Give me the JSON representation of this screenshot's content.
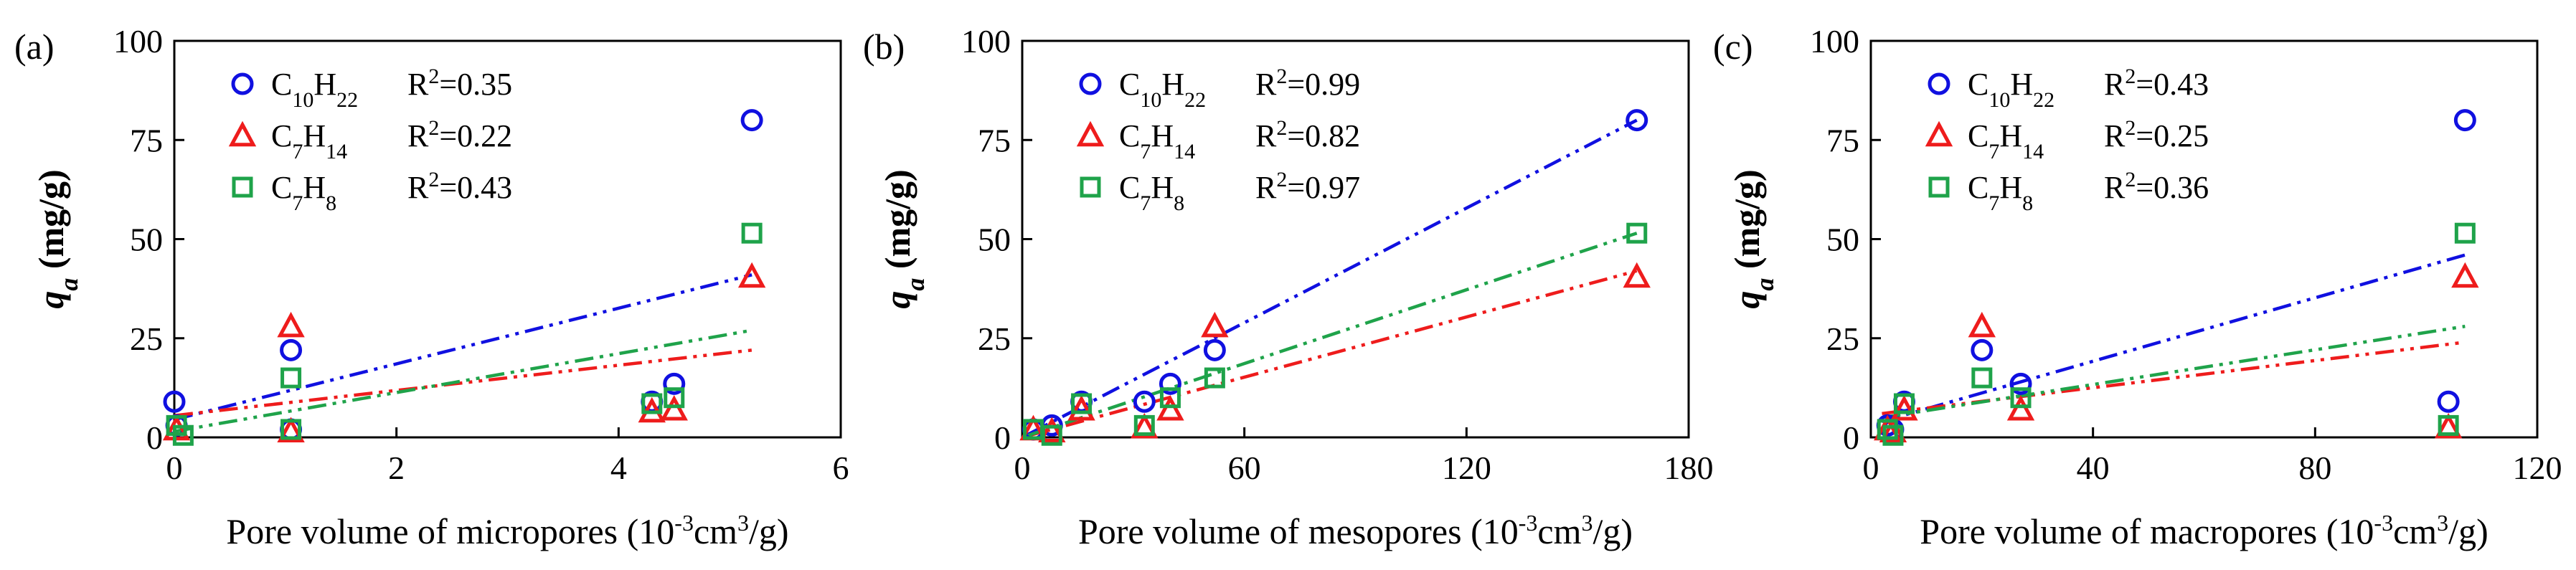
{
  "chart_data": [
    {
      "type": "scatter",
      "panel_label": "(a)",
      "title": "",
      "xlabel": "Pore volume of micropores (10",
      "xlabel_exp1": "-3",
      "xlabel_mid": "cm",
      "xlabel_exp2": "3",
      "xlabel_end": "/g)",
      "ylabel": "q",
      "ylabel_sub": "a",
      "ylabel_unit": " (mg/g)",
      "xlim": [
        0,
        6
      ],
      "ylim": [
        0,
        100
      ],
      "xticks": [
        0,
        2,
        4,
        6
      ],
      "yticks": [
        0,
        25,
        50,
        75,
        100
      ],
      "xtick_labels": [
        "0",
        "2",
        "4",
        "6"
      ],
      "ytick_labels": [
        "0",
        "25",
        "50",
        "75",
        "100"
      ],
      "legend_position": "top-left",
      "series": [
        {
          "name": "C10H22",
          "formula": [
            [
              "C",
              "10"
            ],
            [
              "H",
              "22"
            ]
          ],
          "r2_label": "R",
          "r2_exp": "2",
          "r2_value": "=0.35",
          "marker": "circle",
          "color": "#1010e0",
          "points": [
            [
              0,
              9
            ],
            [
              0.02,
              3
            ],
            [
              1.05,
              22
            ],
            [
              1.05,
              2
            ],
            [
              4.3,
              9
            ],
            [
              4.5,
              13.5
            ],
            [
              5.2,
              80
            ]
          ],
          "fit": [
            [
              0,
              4.5
            ],
            [
              5.2,
              41
            ]
          ]
        },
        {
          "name": "C7H14",
          "formula": [
            [
              "C",
              "7"
            ],
            [
              "H",
              "14"
            ]
          ],
          "r2_label": "R",
          "r2_exp": "2",
          "r2_value": "=0.22",
          "marker": "triangle",
          "color": "#ee1c1c",
          "points": [
            [
              0.02,
              2
            ],
            [
              1.05,
              28
            ],
            [
              1.05,
              1.5
            ],
            [
              4.3,
              6.5
            ],
            [
              4.5,
              7
            ],
            [
              5.2,
              40.5
            ]
          ],
          "fit": [
            [
              0,
              5.5
            ],
            [
              5.2,
              22
            ]
          ]
        },
        {
          "name": "C7H8",
          "formula": [
            [
              "C",
              "7"
            ],
            [
              "H",
              "8"
            ]
          ],
          "r2_label": "R",
          "r2_exp": "2",
          "r2_value": "=0.43",
          "marker": "square",
          "color": "#1fa34a",
          "points": [
            [
              0.02,
              3
            ],
            [
              0.08,
              0.5
            ],
            [
              1.05,
              15
            ],
            [
              1.05,
              2
            ],
            [
              4.3,
              8.5
            ],
            [
              4.5,
              10
            ],
            [
              5.2,
              51.5
            ]
          ],
          "fit": [
            [
              0,
              1.5
            ],
            [
              5.2,
              27
            ]
          ]
        }
      ]
    },
    {
      "type": "scatter",
      "panel_label": "(b)",
      "title": "",
      "xlabel": "Pore volume of mesopores (10",
      "xlabel_exp1": "-3",
      "xlabel_mid": "cm",
      "xlabel_exp2": "3",
      "xlabel_end": "/g)",
      "ylabel": "q",
      "ylabel_sub": "a",
      "ylabel_unit": " (mg/g)",
      "xlim": [
        0,
        180
      ],
      "ylim": [
        0,
        100
      ],
      "xticks": [
        0,
        60,
        120,
        180
      ],
      "yticks": [
        0,
        25,
        50,
        75,
        100
      ],
      "xtick_labels": [
        "0",
        "60",
        "120",
        "180"
      ],
      "ytick_labels": [
        "0",
        "25",
        "50",
        "75",
        "100"
      ],
      "legend_position": "top-left",
      "series": [
        {
          "name": "C10H22",
          "formula": [
            [
              "C",
              "10"
            ],
            [
              "H",
              "22"
            ]
          ],
          "r2_label": "R",
          "r2_exp": "2",
          "r2_value": "=0.99",
          "marker": "circle",
          "color": "#1010e0",
          "points": [
            [
              3,
              2
            ],
            [
              8,
              3
            ],
            [
              16,
              9
            ],
            [
              33,
              9
            ],
            [
              40,
              13.5
            ],
            [
              52,
              22
            ],
            [
              166,
              80
            ]
          ],
          "fit": [
            [
              0,
              0
            ],
            [
              166,
              80
            ]
          ]
        },
        {
          "name": "C7H14",
          "formula": [
            [
              "C",
              "7"
            ],
            [
              "H",
              "14"
            ]
          ],
          "r2_label": "R",
          "r2_exp": "2",
          "r2_value": "=0.82",
          "marker": "triangle",
          "color": "#ee1c1c",
          "points": [
            [
              3,
              2
            ],
            [
              8,
              1.5
            ],
            [
              16,
              7
            ],
            [
              33,
              2.5
            ],
            [
              40,
              7
            ],
            [
              52,
              28
            ],
            [
              166,
              40.5
            ]
          ],
          "fit": [
            [
              0,
              0
            ],
            [
              166,
              42
            ]
          ]
        },
        {
          "name": "C7H8",
          "formula": [
            [
              "C",
              "7"
            ],
            [
              "H",
              "8"
            ]
          ],
          "r2_label": "R",
          "r2_exp": "2",
          "r2_value": "=0.97",
          "marker": "square",
          "color": "#1fa34a",
          "points": [
            [
              3,
              2
            ],
            [
              8,
              0.5
            ],
            [
              16,
              8.5
            ],
            [
              33,
              3
            ],
            [
              40,
              10
            ],
            [
              52,
              15
            ],
            [
              166,
              51.5
            ]
          ],
          "fit": [
            [
              0,
              0
            ],
            [
              166,
              51.5
            ]
          ]
        }
      ]
    },
    {
      "type": "scatter",
      "panel_label": "(c)",
      "title": "",
      "xlabel": "Pore volume of macropores (10",
      "xlabel_exp1": "-3",
      "xlabel_mid": "cm",
      "xlabel_exp2": "3",
      "xlabel_end": "/g)",
      "ylabel": "q",
      "ylabel_sub": "a",
      "ylabel_unit": " (mg/g)",
      "xlim": [
        0,
        120
      ],
      "ylim": [
        0,
        100
      ],
      "xticks": [
        0,
        40,
        80,
        120
      ],
      "yticks": [
        0,
        25,
        50,
        75,
        100
      ],
      "xtick_labels": [
        "0",
        "40",
        "80",
        "120"
      ],
      "ytick_labels": [
        "0",
        "25",
        "50",
        "75",
        "100"
      ],
      "legend_position": "top-left",
      "series": [
        {
          "name": "C10H22",
          "formula": [
            [
              "C",
              "10"
            ],
            [
              "H",
              "22"
            ]
          ],
          "r2_label": "R",
          "r2_exp": "2",
          "r2_value": "=0.43",
          "marker": "circle",
          "color": "#1010e0",
          "points": [
            [
              3,
              3
            ],
            [
              4,
              2
            ],
            [
              6,
              9
            ],
            [
              20,
              22
            ],
            [
              27,
              13.5
            ],
            [
              104,
              9
            ],
            [
              107,
              80
            ]
          ],
          "fit": [
            [
              2,
              4
            ],
            [
              107,
              46
            ]
          ]
        },
        {
          "name": "C7H14",
          "formula": [
            [
              "C",
              "7"
            ],
            [
              "H",
              "14"
            ]
          ],
          "r2_label": "R",
          "r2_exp": "2",
          "r2_value": "=0.25",
          "marker": "triangle",
          "color": "#ee1c1c",
          "points": [
            [
              3,
              2
            ],
            [
              4,
              1.5
            ],
            [
              6,
              7
            ],
            [
              20,
              28
            ],
            [
              27,
              7
            ],
            [
              104,
              2.5
            ],
            [
              107,
              40.5
            ]
          ],
          "fit": [
            [
              2,
              6
            ],
            [
              107,
              24
            ]
          ]
        },
        {
          "name": "C7H8",
          "formula": [
            [
              "C",
              "7"
            ],
            [
              "H",
              "8"
            ]
          ],
          "r2_label": "R",
          "r2_exp": "2",
          "r2_value": "=0.36",
          "marker": "square",
          "color": "#1fa34a",
          "points": [
            [
              3,
              2
            ],
            [
              4,
              0.5
            ],
            [
              6,
              8.5
            ],
            [
              20,
              15
            ],
            [
              27,
              10
            ],
            [
              104,
              3
            ],
            [
              107,
              51.5
            ]
          ],
          "fit": [
            [
              2,
              5
            ],
            [
              107,
              28
            ]
          ]
        }
      ]
    }
  ]
}
